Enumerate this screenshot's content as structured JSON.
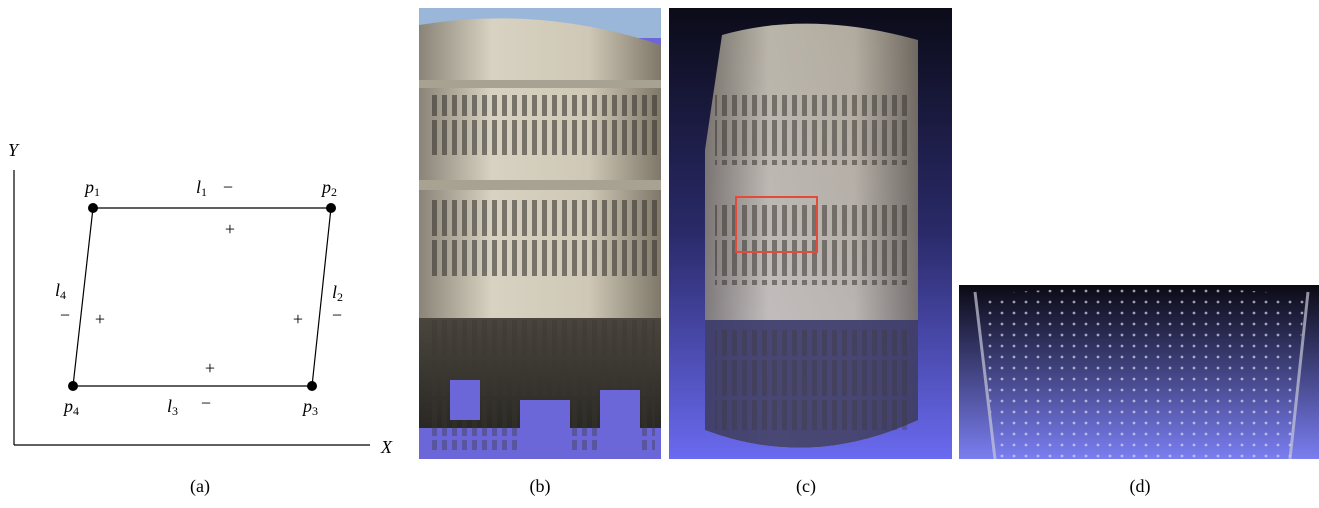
{
  "diagram": {
    "axis_labels": {
      "x": "X",
      "y": "Y"
    },
    "points": [
      {
        "name": "p",
        "sub": "1"
      },
      {
        "name": "p",
        "sub": "2"
      },
      {
        "name": "p",
        "sub": "3"
      },
      {
        "name": "p",
        "sub": "4"
      }
    ],
    "lines": [
      {
        "name": "l",
        "sub": "1",
        "minus": "−",
        "plus": "+"
      },
      {
        "name": "l",
        "sub": "2",
        "minus": "−",
        "plus": "+"
      },
      {
        "name": "l",
        "sub": "3",
        "minus": "−",
        "plus": "+"
      },
      {
        "name": "l",
        "sub": "4",
        "minus": "−",
        "plus": "+"
      }
    ]
  },
  "captions": [
    "(a)",
    "(b)",
    "(c)",
    "(d)"
  ]
}
